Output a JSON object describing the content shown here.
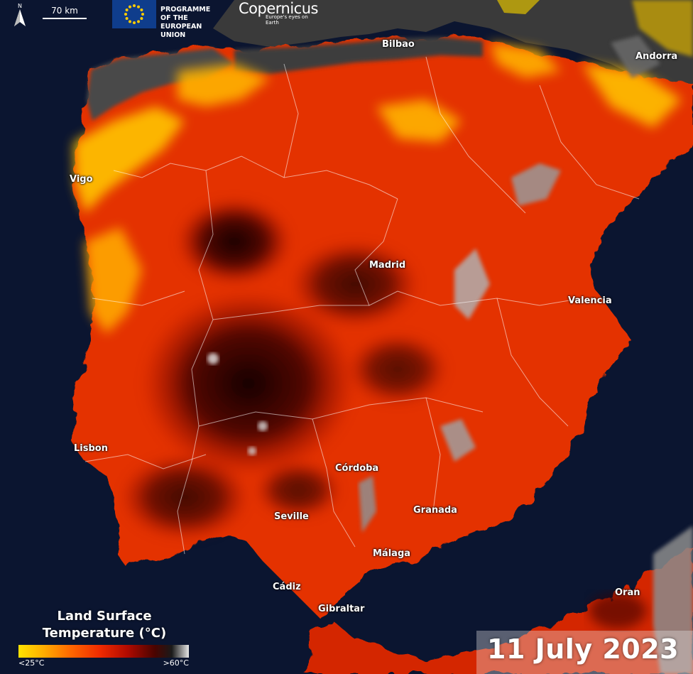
{
  "header": {
    "north_label": "N",
    "scale_label": "70 km",
    "eu_programme_text": [
      "PROGRAMME OF THE",
      "EUROPEAN UNION"
    ],
    "copernicus_name": "Copernicus",
    "copernicus_tagline": "Europe's eyes on Earth"
  },
  "cities": [
    "Bilbao",
    "Andorra",
    "Vigo",
    "Madrid",
    "Valencia",
    "Lisbon",
    "Córdoba",
    "Granada",
    "Seville",
    "Málaga",
    "Cádiz",
    "Gibraltar",
    "Oran"
  ],
  "legend": {
    "title_line1": "Land Surface",
    "title_line2": "Temperature (°C)",
    "min_label": "<25°C",
    "max_label": ">60°C",
    "colors": [
      "#ffe300",
      "#ff6a00",
      "#f02a00",
      "#b00a00",
      "#4a0400",
      "#1a1a1a",
      "#e6e6e6"
    ]
  },
  "date": "11 July 2023",
  "colors": {
    "sea": "#0b1530",
    "hot": "#e02800",
    "very_hot": "#3a0500",
    "cool": "#ffd800",
    "cloud_land": "#3b3b3b"
  }
}
